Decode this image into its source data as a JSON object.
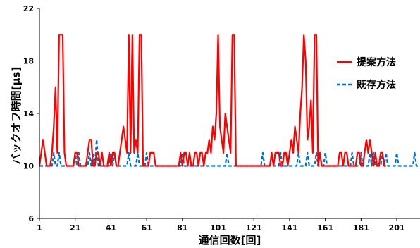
{
  "chart_data": {
    "type": "line",
    "xlabel": "通信回数[回]",
    "ylabel": "バックオフ時間[μs]",
    "xlim": [
      1,
      214
    ],
    "ylim": [
      6,
      22
    ],
    "yticks": [
      6,
      10,
      14,
      18,
      22
    ],
    "xticks": [
      1,
      21,
      41,
      61,
      81,
      101,
      121,
      141,
      161,
      181,
      201
    ],
    "grid": false,
    "legend_position": "right",
    "series": [
      {
        "name": "提案方法",
        "color": "#ff0000",
        "style": "solid",
        "points": [
          [
            1,
            10
          ],
          [
            2,
            11
          ],
          [
            3,
            12
          ],
          [
            4,
            11
          ],
          [
            5,
            10
          ],
          [
            6,
            10
          ],
          [
            7,
            10
          ],
          [
            8,
            11
          ],
          [
            9,
            13
          ],
          [
            10,
            16
          ],
          [
            11,
            11
          ],
          [
            12,
            20
          ],
          [
            13,
            20
          ],
          [
            14,
            20
          ],
          [
            15,
            11
          ],
          [
            16,
            10
          ],
          [
            17,
            10
          ],
          [
            18,
            10
          ],
          [
            19,
            10
          ],
          [
            20,
            10
          ],
          [
            21,
            11
          ],
          [
            22,
            11
          ],
          [
            23,
            10
          ],
          [
            24,
            10
          ],
          [
            25,
            10
          ],
          [
            26,
            10
          ],
          [
            27,
            10
          ],
          [
            28,
            11
          ],
          [
            29,
            12
          ],
          [
            30,
            12
          ],
          [
            31,
            10
          ],
          [
            32,
            10
          ],
          [
            33,
            11
          ],
          [
            34,
            11
          ],
          [
            35,
            10
          ],
          [
            36,
            11
          ],
          [
            37,
            10
          ],
          [
            38,
            10
          ],
          [
            39,
            10
          ],
          [
            40,
            11
          ],
          [
            41,
            10
          ],
          [
            42,
            11
          ],
          [
            43,
            11
          ],
          [
            44,
            10
          ],
          [
            45,
            10
          ],
          [
            46,
            11
          ],
          [
            47,
            12
          ],
          [
            48,
            13
          ],
          [
            49,
            12
          ],
          [
            50,
            11
          ],
          [
            51,
            20
          ],
          [
            52,
            11
          ],
          [
            53,
            20
          ],
          [
            54,
            11
          ],
          [
            55,
            12
          ],
          [
            56,
            11
          ],
          [
            57,
            20
          ],
          [
            58,
            20
          ],
          [
            59,
            10
          ],
          [
            60,
            10
          ],
          [
            61,
            10
          ],
          [
            62,
            10
          ],
          [
            63,
            11
          ],
          [
            64,
            11
          ],
          [
            65,
            11
          ],
          [
            66,
            10
          ],
          [
            67,
            10
          ],
          [
            68,
            10
          ],
          [
            69,
            10
          ],
          [
            70,
            10
          ],
          [
            71,
            10
          ],
          [
            72,
            10
          ],
          [
            73,
            10
          ],
          [
            74,
            10
          ],
          [
            75,
            10
          ],
          [
            76,
            10
          ],
          [
            77,
            10
          ],
          [
            78,
            10
          ],
          [
            79,
            10
          ],
          [
            80,
            11
          ],
          [
            81,
            10
          ],
          [
            82,
            11
          ],
          [
            83,
            11
          ],
          [
            84,
            10
          ],
          [
            85,
            11
          ],
          [
            86,
            10
          ],
          [
            87,
            10
          ],
          [
            88,
            11
          ],
          [
            89,
            11
          ],
          [
            90,
            10
          ],
          [
            91,
            11
          ],
          [
            92,
            11
          ],
          [
            93,
            10
          ],
          [
            94,
            11
          ],
          [
            95,
            11
          ],
          [
            96,
            12
          ],
          [
            97,
            11
          ],
          [
            98,
            13
          ],
          [
            99,
            12
          ],
          [
            100,
            14
          ],
          [
            101,
            20
          ],
          [
            102,
            13
          ],
          [
            103,
            12
          ],
          [
            104,
            11
          ],
          [
            105,
            14
          ],
          [
            106,
            13
          ],
          [
            107,
            12
          ],
          [
            108,
            11
          ],
          [
            109,
            20
          ],
          [
            110,
            20
          ],
          [
            111,
            10
          ],
          [
            112,
            10
          ],
          [
            113,
            10
          ],
          [
            114,
            10
          ],
          [
            115,
            10
          ],
          [
            116,
            10
          ],
          [
            117,
            10
          ],
          [
            118,
            10
          ],
          [
            119,
            10
          ],
          [
            120,
            10
          ],
          [
            121,
            10
          ],
          [
            122,
            10
          ],
          [
            123,
            10
          ],
          [
            124,
            10
          ],
          [
            125,
            10
          ],
          [
            126,
            10
          ],
          [
            127,
            10
          ],
          [
            128,
            10
          ],
          [
            129,
            10
          ],
          [
            130,
            10
          ],
          [
            131,
            11
          ],
          [
            132,
            10
          ],
          [
            133,
            11
          ],
          [
            134,
            11
          ],
          [
            135,
            11
          ],
          [
            136,
            10
          ],
          [
            137,
            10
          ],
          [
            138,
            11
          ],
          [
            139,
            11
          ],
          [
            140,
            10
          ],
          [
            141,
            11
          ],
          [
            142,
            12
          ],
          [
            143,
            11
          ],
          [
            144,
            13
          ],
          [
            145,
            12
          ],
          [
            146,
            11
          ],
          [
            147,
            14
          ],
          [
            148,
            16
          ],
          [
            149,
            20
          ],
          [
            150,
            18
          ],
          [
            151,
            12
          ],
          [
            152,
            13
          ],
          [
            153,
            15
          ],
          [
            154,
            11
          ],
          [
            155,
            20
          ],
          [
            156,
            20
          ],
          [
            157,
            10
          ],
          [
            158,
            11
          ],
          [
            159,
            10
          ],
          [
            160,
            10
          ],
          [
            161,
            10
          ],
          [
            162,
            10
          ],
          [
            163,
            10
          ],
          [
            164,
            10
          ],
          [
            165,
            10
          ],
          [
            166,
            10
          ],
          [
            167,
            10
          ],
          [
            168,
            10
          ],
          [
            169,
            11
          ],
          [
            170,
            11
          ],
          [
            171,
            10
          ],
          [
            172,
            11
          ],
          [
            173,
            11
          ],
          [
            174,
            10
          ],
          [
            175,
            10
          ],
          [
            176,
            10
          ],
          [
            177,
            10
          ],
          [
            178,
            10
          ],
          [
            179,
            11
          ],
          [
            180,
            11
          ],
          [
            181,
            10
          ],
          [
            182,
            10
          ],
          [
            183,
            11
          ],
          [
            184,
            12
          ],
          [
            185,
            11
          ],
          [
            186,
            12
          ],
          [
            187,
            11
          ],
          [
            188,
            10
          ],
          [
            189,
            11
          ],
          [
            190,
            10
          ],
          [
            191,
            10
          ],
          [
            192,
            11
          ],
          [
            193,
            11
          ],
          [
            194,
            10
          ],
          [
            195,
            10
          ]
        ]
      },
      {
        "name": "既存方法",
        "color": "#0070c0",
        "style": "dashed",
        "points": [
          [
            1,
            10
          ],
          [
            8,
            10
          ],
          [
            9,
            11
          ],
          [
            10,
            10
          ],
          [
            11,
            10
          ],
          [
            12,
            11
          ],
          [
            13,
            10
          ],
          [
            14,
            10
          ],
          [
            20,
            10
          ],
          [
            21,
            11
          ],
          [
            22,
            10
          ],
          [
            23,
            11
          ],
          [
            24,
            10
          ],
          [
            25,
            10
          ],
          [
            28,
            10
          ],
          [
            29,
            11
          ],
          [
            30,
            10
          ],
          [
            31,
            11
          ],
          [
            32,
            10
          ],
          [
            33,
            12
          ],
          [
            34,
            10
          ],
          [
            35,
            10
          ],
          [
            40,
            10
          ],
          [
            41,
            11
          ],
          [
            42,
            10
          ],
          [
            43,
            11
          ],
          [
            44,
            10
          ],
          [
            45,
            10
          ],
          [
            50,
            10
          ],
          [
            51,
            11
          ],
          [
            52,
            10
          ],
          [
            55,
            10
          ],
          [
            56,
            11
          ],
          [
            57,
            10
          ],
          [
            58,
            10
          ],
          [
            60,
            10
          ],
          [
            61,
            11
          ],
          [
            62,
            10
          ],
          [
            63,
            10
          ],
          [
            80,
            10
          ],
          [
            81,
            11
          ],
          [
            82,
            10
          ],
          [
            83,
            10
          ],
          [
            105,
            10
          ],
          [
            106,
            11
          ],
          [
            107,
            10
          ],
          [
            108,
            10
          ],
          [
            125,
            10
          ],
          [
            126,
            11
          ],
          [
            127,
            10
          ],
          [
            128,
            10
          ],
          [
            130,
            10
          ],
          [
            131,
            11
          ],
          [
            132,
            10
          ],
          [
            135,
            10
          ],
          [
            136,
            11
          ],
          [
            137,
            10
          ],
          [
            138,
            10
          ],
          [
            145,
            10
          ],
          [
            146,
            11
          ],
          [
            147,
            10
          ],
          [
            150,
            10
          ],
          [
            151,
            11
          ],
          [
            152,
            10
          ],
          [
            155,
            10
          ],
          [
            156,
            11
          ],
          [
            157,
            10
          ],
          [
            160,
            10
          ],
          [
            161,
            11
          ],
          [
            162,
            10
          ],
          [
            163,
            10
          ],
          [
            175,
            10
          ],
          [
            176,
            11
          ],
          [
            177,
            10
          ],
          [
            180,
            10
          ],
          [
            181,
            11
          ],
          [
            182,
            10
          ],
          [
            185,
            10
          ],
          [
            186,
            11
          ],
          [
            187,
            10
          ],
          [
            188,
            11
          ],
          [
            189,
            10
          ],
          [
            190,
            10
          ],
          [
            192,
            10
          ],
          [
            193,
            11
          ],
          [
            194,
            10
          ],
          [
            195,
            11
          ],
          [
            196,
            10
          ],
          [
            200,
            10
          ],
          [
            201,
            11
          ],
          [
            202,
            10
          ],
          [
            203,
            10
          ],
          [
            210,
            10
          ],
          [
            211,
            11
          ],
          [
            212,
            10
          ],
          [
            214,
            10
          ]
        ]
      }
    ]
  }
}
